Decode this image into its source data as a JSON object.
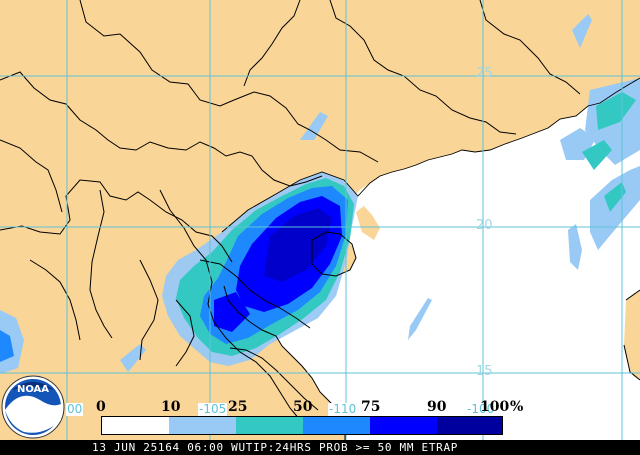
{
  "map": {
    "latitude_labels": [
      "25",
      "20",
      "15"
    ],
    "longitude_labels": [
      "-105",
      "-110",
      "00",
      "-100"
    ],
    "colors": {
      "land": "#f9d597",
      "ocean": "#ffffff",
      "grid": "#5ec3d8",
      "border": "#000000"
    }
  },
  "legend": {
    "ticks": [
      "0",
      "10",
      "25",
      "50",
      "75",
      "90",
      "100"
    ],
    "unit": "%",
    "colors": [
      "#ffffff",
      "#99c9f5",
      "#33c9c2",
      "#1e88ff",
      "#0000ff",
      "#00009f"
    ]
  },
  "logo": {
    "text": "NOAA"
  },
  "footer": {
    "caption": "13 JUN 25164 06:00 WUTIP:24HRS PROB >= 50 MM ETRAP"
  }
}
